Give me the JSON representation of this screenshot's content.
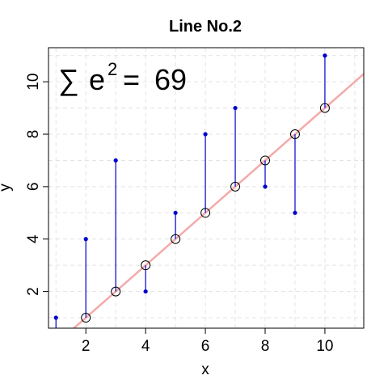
{
  "chart_data": {
    "type": "scatter",
    "title": "Line No.2",
    "xlabel": "x",
    "ylabel": "y",
    "xlim": [
      0.75,
      11.3
    ],
    "ylim": [
      0.6,
      11.3
    ],
    "x_ticks": [
      2,
      4,
      6,
      8,
      10
    ],
    "y_ticks": [
      2,
      4,
      6,
      8,
      10
    ],
    "grid": true,
    "points": {
      "x": [
        1,
        2,
        3,
        4,
        5,
        6,
        7,
        8,
        9,
        10
      ],
      "y": [
        1,
        4,
        7,
        2,
        5,
        8,
        9,
        6,
        5,
        11
      ]
    },
    "fitted": {
      "x": [
        2,
        3,
        4,
        5,
        6,
        7,
        8,
        9,
        10
      ],
      "y": [
        1,
        2,
        3,
        4,
        5,
        6,
        7,
        8,
        9
      ]
    },
    "line": {
      "intercept": -1,
      "slope": 1
    },
    "annotation": {
      "symbol": "∑",
      "base": "e",
      "exponent": "2",
      "value": "= 69"
    },
    "colors": {
      "points": "#0000cc",
      "residuals": "#0000cc",
      "line": "#f4aaaa",
      "fitted_outline": "#000000",
      "grid": "#e3e3e3"
    }
  }
}
